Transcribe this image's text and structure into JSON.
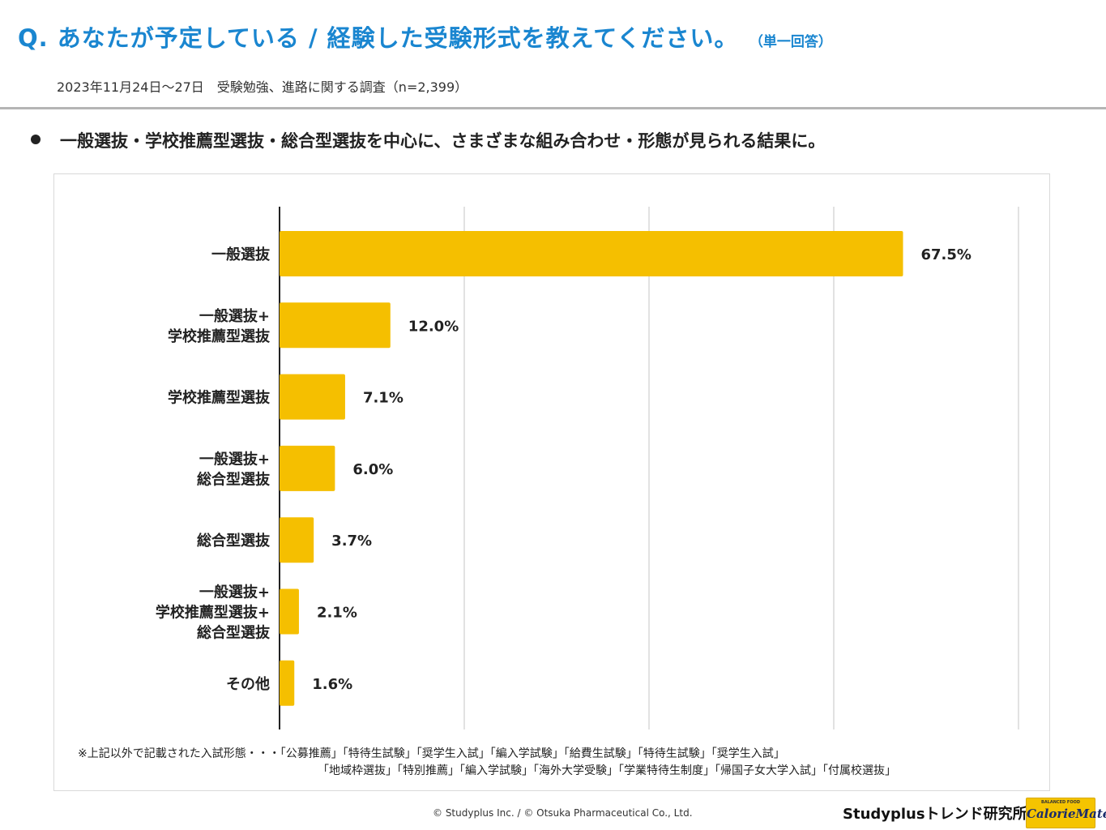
{
  "header": {
    "title": "Q. あなたが予定している / 経験した受験形式を教えてください。",
    "note": "（単一回答）",
    "survey": "2023年11月24日～27日　受験勉強、進路に関する調査（n=2,399）"
  },
  "summary": "一般選抜・学校推薦型選抜・総合型選抜を中心に、さまざまな組み合わせ・形態が見られる結果に。",
  "chart_data": {
    "type": "bar",
    "orientation": "horizontal",
    "title": "",
    "xlabel": "",
    "ylabel": "",
    "xlim": [
      0,
      80
    ],
    "gridlines": [
      0,
      20,
      40,
      60,
      80
    ],
    "categories": [
      [
        "一般選抜"
      ],
      [
        "一般選抜+",
        "学校推薦型選抜"
      ],
      [
        "学校推薦型選抜"
      ],
      [
        "一般選抜+",
        "総合型選抜"
      ],
      [
        "総合型選抜"
      ],
      [
        "一般選抜+",
        "学校推薦型選抜+",
        "総合型選抜"
      ],
      [
        "その他"
      ]
    ],
    "values": [
      67.5,
      12.0,
      7.1,
      6.0,
      3.7,
      2.1,
      1.6
    ],
    "value_labels": [
      "67.5%",
      "12.0%",
      "7.1%",
      "6.0%",
      "3.7%",
      "2.1%",
      "1.6%"
    ],
    "bar_color": "#f5bf00",
    "axis_color": "#222222",
    "grid_color": "#cfcfcf"
  },
  "footnote": {
    "line1": "※上記以外で記載された入試形態・・・「公募推薦」「特待生試験」「奨学生入試」「編入学試験」「給費生試験」「特待生試験」「奨学生入試」",
    "line2": "「地域枠選抜」「特別推薦」「編入学試験」「海外大学受験」「学業特待生制度」「帰国子女大学入試」「付属校選抜」"
  },
  "footer": {
    "copyright": "© Studyplus Inc.  / © Otsuka Pharmaceutical Co., Ltd.",
    "brand": "Studyplusトレンド研究所",
    "logo_small": "BALANCED FOOD",
    "logo_text": "CalorieMate"
  }
}
